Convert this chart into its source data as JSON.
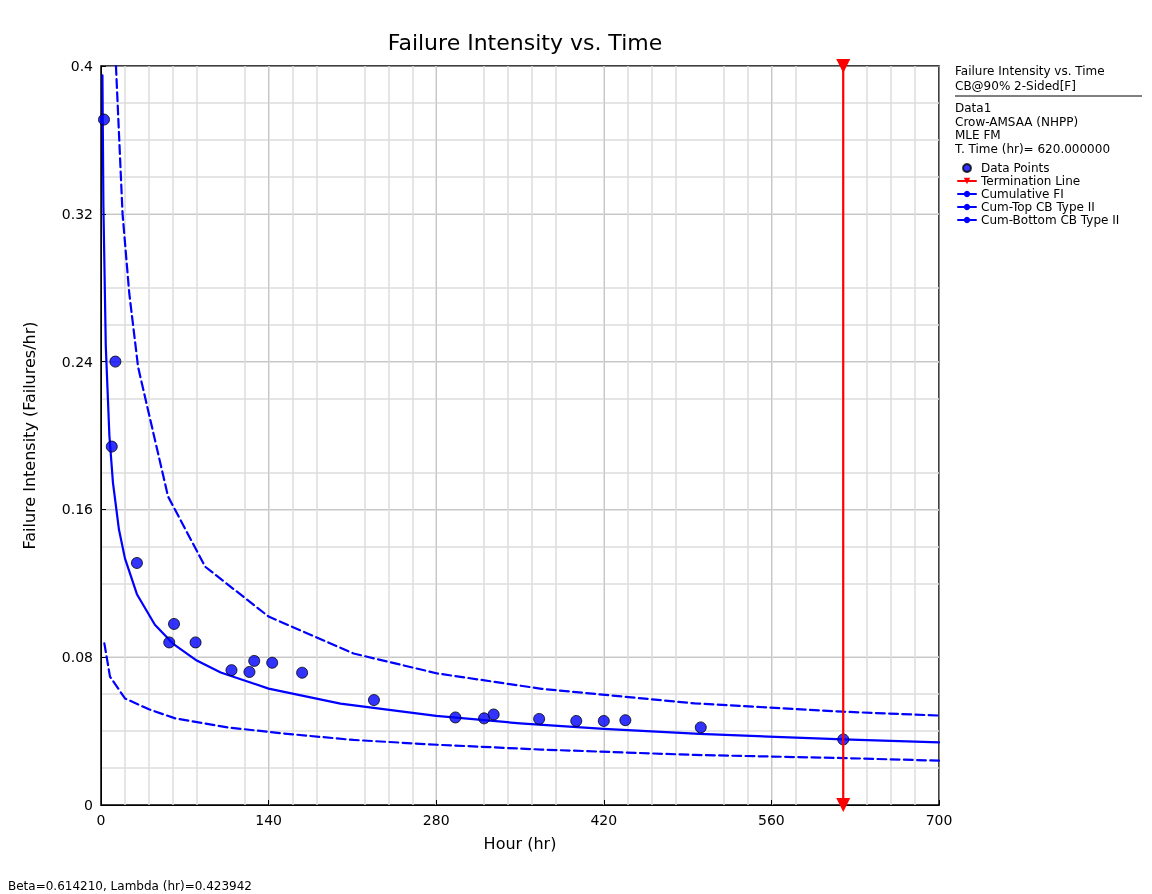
{
  "chart_data": {
    "type": "scatter",
    "title": "Failure Intensity vs. Time",
    "xlabel": "Hour (hr)",
    "ylabel": "Failure Intensity (Failures/hr)",
    "legend_title": "Failure Intensity vs. Time",
    "annotations": [
      "CB@90% 2-Sided[F]",
      "Data1",
      "Crow-AMSAA (NHPP)",
      "MLE FM",
      "T. Time (hr)= 620.000000",
      "Beta=0.614210, Lambda (hr)=0.423942"
    ],
    "xlim": [
      0,
      700
    ],
    "xticks": [
      0,
      140,
      280,
      420,
      560,
      700
    ],
    "ylim": [
      0,
      0.4
    ],
    "yticks": [
      0,
      0.08,
      0.16,
      0.24,
      0.32,
      0.4
    ],
    "grid": true,
    "legend": "right",
    "series": [
      {
        "name": "Data Points",
        "type": "scatter",
        "marker": "circle",
        "color": "#0000ff",
        "x": [
          2.5,
          9,
          12,
          30,
          57,
          61,
          79,
          109,
          124,
          128,
          143,
          168,
          228,
          296,
          320,
          328,
          366,
          397,
          420,
          438,
          501,
          620
        ],
        "values": [
          0.371,
          0.194,
          0.24,
          0.131,
          0.088,
          0.098,
          0.088,
          0.073,
          0.072,
          0.078,
          0.077,
          0.0716,
          0.0568,
          0.0474,
          0.0469,
          0.049,
          0.0466,
          0.0455,
          0.0455,
          0.0459,
          0.042,
          0.0355
        ]
      },
      {
        "name": "Termination Line",
        "type": "line",
        "line_style": "solid",
        "marker": "triangle",
        "color": "#ff0000",
        "x": [
          620,
          620
        ],
        "values": [
          0,
          0.4
        ]
      },
      {
        "name": "Cumulative FI",
        "type": "line",
        "line_style": "solid",
        "marker": "none",
        "color": "#0000ff",
        "x": [
          1.2,
          2,
          4,
          7,
          10,
          15,
          20,
          30,
          45,
          60,
          80,
          100,
          140,
          200,
          280,
          350,
          420,
          500,
          620,
          700
        ],
        "values": [
          0.395,
          0.3245,
          0.2483,
          0.2001,
          0.1744,
          0.1491,
          0.1335,
          0.1141,
          0.0976,
          0.0874,
          0.0782,
          0.0717,
          0.063,
          0.0549,
          0.0482,
          0.0442,
          0.0412,
          0.0385,
          0.0355,
          0.0339
        ]
      },
      {
        "name": "Cum-Top CB Type II",
        "type": "line",
        "line_style": "dashed",
        "marker": "none",
        "color": "#0000ff",
        "x": [
          12.5,
          18,
          23.6,
          31,
          56,
          87,
          140,
          211,
          281,
          368,
          496,
          620,
          700
        ],
        "values": [
          0.4,
          0.32,
          0.277,
          0.237,
          0.167,
          0.129,
          0.102,
          0.082,
          0.0712,
          0.0629,
          0.055,
          0.0505,
          0.0484
        ]
      },
      {
        "name": "Cum-Bottom CB Type II",
        "type": "line",
        "line_style": "dashed",
        "marker": "none",
        "color": "#0000ff",
        "x": [
          2.8,
          7.5,
          20,
          40,
          62,
          106,
          151,
          211,
          281,
          368,
          496,
          620,
          700
        ],
        "values": [
          0.0875,
          0.0695,
          0.0577,
          0.0518,
          0.0469,
          0.042,
          0.0388,
          0.0352,
          0.0326,
          0.03,
          0.0271,
          0.0254,
          0.024
        ]
      }
    ]
  }
}
